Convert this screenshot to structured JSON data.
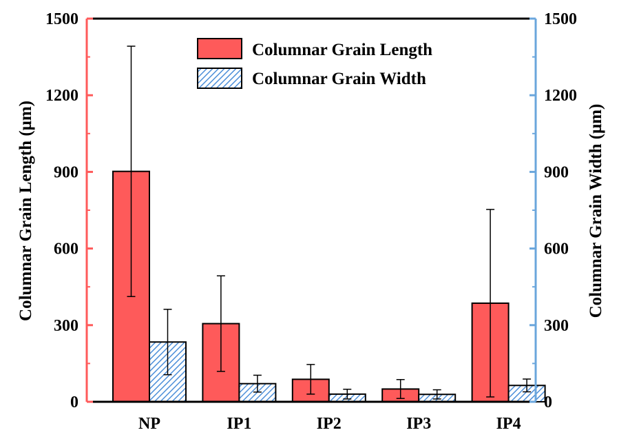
{
  "chart_data": {
    "type": "bar",
    "categories": [
      "NP",
      "IP1",
      "IP2",
      "IP3",
      "IP4"
    ],
    "series": [
      {
        "name": "Columnar Grain Length",
        "axis": "left",
        "values": [
          902,
          306,
          88,
          50,
          386
        ],
        "error": [
          490,
          187,
          58,
          37,
          367
        ],
        "color": "#fe5a5a",
        "fill": "solid"
      },
      {
        "name": "Columnar Grain Width",
        "axis": "right",
        "values": [
          234,
          71,
          30,
          29,
          64
        ],
        "error": [
          128,
          33,
          19,
          18,
          25
        ],
        "color": "#4d8fd9",
        "fill": "hatched"
      }
    ],
    "ylabel": "Columnar Grain Length (μm)",
    "y2label": "Columnar Grain Width (μm)",
    "ylim": [
      0,
      1500
    ],
    "y2lim": [
      0,
      1500
    ],
    "yticks": [
      0,
      300,
      600,
      900,
      1200,
      1500
    ],
    "y2ticks": [
      0,
      300,
      600,
      900,
      1200,
      1500
    ],
    "left_axis_color": "#ff5a5a",
    "right_axis_color": "#6aa6dc",
    "legend_position": "top-center",
    "grid": false
  }
}
